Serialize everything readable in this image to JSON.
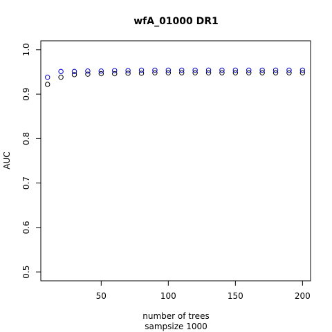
{
  "chart_data": {
    "type": "scatter",
    "title": "wfA_01000 DR1",
    "xlabel": "number of trees",
    "xlabel2": "sampsize 1000",
    "ylabel": "AUC",
    "xlim": [
      5,
      206
    ],
    "ylim": [
      0.48,
      1.02
    ],
    "xticks": [
      50,
      100,
      150,
      200
    ],
    "yticks": [
      0.5,
      0.6,
      0.7,
      0.8,
      0.9,
      1.0
    ],
    "ytick_labels": [
      "0.5",
      "0.6",
      "0.7",
      "0.8",
      "0.9",
      "1.0"
    ],
    "grid": false,
    "marker": "open-circle",
    "series": [
      {
        "color": "#000000",
        "x": [
          10,
          20,
          30,
          40,
          50,
          60,
          70,
          80,
          90,
          100,
          110,
          120,
          130,
          140,
          150,
          160,
          170,
          180,
          190,
          200
        ],
        "y": [
          0.922,
          0.938,
          0.944,
          0.945,
          0.946,
          0.946,
          0.947,
          0.947,
          0.948,
          0.948,
          0.948,
          0.948,
          0.948,
          0.948,
          0.948,
          0.948,
          0.948,
          0.948,
          0.948,
          0.948
        ]
      },
      {
        "color": "#0000cc",
        "x": [
          10,
          20,
          30,
          40,
          50,
          60,
          70,
          80,
          90,
          100,
          110,
          120,
          130,
          140,
          150,
          160,
          170,
          180,
          190,
          200
        ],
        "y": [
          0.938,
          0.951,
          0.951,
          0.952,
          0.952,
          0.953,
          0.953,
          0.954,
          0.954,
          0.954,
          0.954,
          0.954,
          0.954,
          0.954,
          0.954,
          0.954,
          0.954,
          0.954,
          0.954,
          0.954
        ]
      }
    ]
  }
}
